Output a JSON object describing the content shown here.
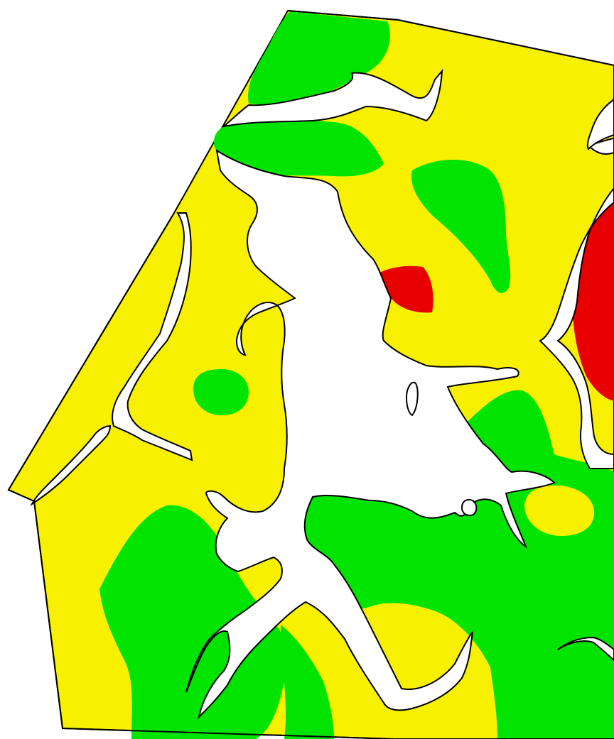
{
  "map": {
    "colors": {
      "background": "#ffffff",
      "high_zone": "#00e400",
      "medium_zone": "#f7f000",
      "low_zone": "#e80000",
      "boundary": "#000000",
      "gap": "#ffffff"
    },
    "zones": [
      {
        "class": "medium",
        "color": "#f7f000"
      },
      {
        "class": "high",
        "color": "#00e400"
      },
      {
        "class": "low",
        "color": "#e80000"
      }
    ]
  }
}
